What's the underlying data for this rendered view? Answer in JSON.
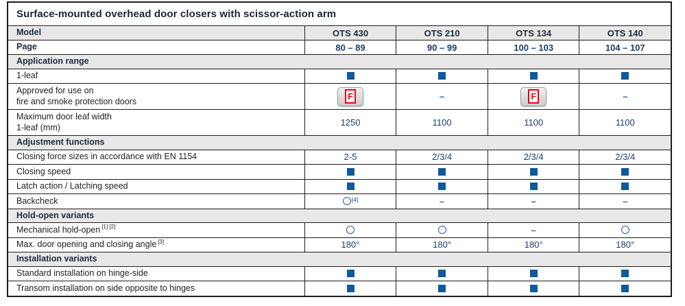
{
  "title": "Surface-mounted overhead door closers with scissor-action arm",
  "columns": [
    "OTS 430",
    "OTS 210",
    "OTS 134",
    "OTS 140"
  ],
  "fire_badge_letter": "F",
  "colors": {
    "accent_blue": "#0f5a9b",
    "value_navy": "#1c3f66",
    "fire_red": "#e30613",
    "section_gray": "#e8e8e8",
    "border_dark": "#1c1c1c"
  },
  "legend": {
    "square_meaning": "filled-square-icon",
    "circle_meaning": "open-circle-icon",
    "dash_meaning": "dash-icon",
    "fire_meaning": "fire-door-badge-icon"
  },
  "rows": [
    {
      "kind": "header",
      "label": "Model",
      "cells": [
        {
          "type": "text",
          "value": "OTS 430"
        },
        {
          "type": "text",
          "value": "OTS 210"
        },
        {
          "type": "text",
          "value": "OTS 134"
        },
        {
          "type": "text",
          "value": "OTS 140"
        }
      ]
    },
    {
      "kind": "header",
      "sub": "pagerow",
      "label": "Page",
      "cells": [
        {
          "type": "text",
          "value": "80 – 89"
        },
        {
          "type": "text",
          "value": "90 – 99"
        },
        {
          "type": "text",
          "value": "100 – 103"
        },
        {
          "type": "text",
          "value": "104 – 107"
        }
      ]
    },
    {
      "kind": "section",
      "label": "Application range"
    },
    {
      "kind": "data",
      "label": "1-leaf",
      "cells": [
        {
          "type": "square"
        },
        {
          "type": "square"
        },
        {
          "type": "square"
        },
        {
          "type": "square"
        }
      ]
    },
    {
      "kind": "data",
      "label": "Approved for use on",
      "label2": "fire and smoke protection doors",
      "cells": [
        {
          "type": "fire"
        },
        {
          "type": "dash"
        },
        {
          "type": "fire"
        },
        {
          "type": "dash"
        }
      ]
    },
    {
      "kind": "data",
      "label": "Maximum door leaf width",
      "label2": "1-leaf (mm)",
      "cells": [
        {
          "type": "text",
          "value": "1250"
        },
        {
          "type": "text",
          "value": "1100"
        },
        {
          "type": "text",
          "value": "1100"
        },
        {
          "type": "text",
          "value": "1100"
        }
      ]
    },
    {
      "kind": "section",
      "label": "Adjustment functions"
    },
    {
      "kind": "data",
      "label": "Closing force sizes in accordance with EN 1154",
      "cells": [
        {
          "type": "text",
          "value": "2-5"
        },
        {
          "type": "text",
          "value": "2/3/4"
        },
        {
          "type": "text",
          "value": "2/3/4"
        },
        {
          "type": "text",
          "value": "2/3/4"
        }
      ]
    },
    {
      "kind": "data",
      "label": "Closing speed",
      "cells": [
        {
          "type": "square"
        },
        {
          "type": "square"
        },
        {
          "type": "square"
        },
        {
          "type": "square"
        }
      ]
    },
    {
      "kind": "data",
      "label": "Latch action / Latching speed",
      "cells": [
        {
          "type": "square"
        },
        {
          "type": "square"
        },
        {
          "type": "square"
        },
        {
          "type": "square"
        }
      ]
    },
    {
      "kind": "data",
      "label": "Backcheck",
      "cells": [
        {
          "type": "circle",
          "sup": "[4]"
        },
        {
          "type": "dash"
        },
        {
          "type": "dash"
        },
        {
          "type": "dash"
        }
      ]
    },
    {
      "kind": "section",
      "label": "Hold-open variants"
    },
    {
      "kind": "data",
      "label": "Mechanical hold-open",
      "label_sup": "[1] [2]",
      "cells": [
        {
          "type": "circle"
        },
        {
          "type": "circle"
        },
        {
          "type": "dash"
        },
        {
          "type": "circle"
        }
      ]
    },
    {
      "kind": "data",
      "label": "Max. door opening and closing angle",
      "label_sup": "[3]",
      "cells": [
        {
          "type": "text",
          "value": "180°"
        },
        {
          "type": "text",
          "value": "180°"
        },
        {
          "type": "text",
          "value": "180°"
        },
        {
          "type": "text",
          "value": "180°"
        }
      ]
    },
    {
      "kind": "section",
      "label": "Installation variants"
    },
    {
      "kind": "data",
      "label": "Standard installation on hinge-side",
      "cells": [
        {
          "type": "square"
        },
        {
          "type": "square"
        },
        {
          "type": "square"
        },
        {
          "type": "square"
        }
      ]
    },
    {
      "kind": "data",
      "label": "Transom installation on side opposite to hinges",
      "cells": [
        {
          "type": "square"
        },
        {
          "type": "square"
        },
        {
          "type": "square"
        },
        {
          "type": "square"
        }
      ]
    }
  ]
}
